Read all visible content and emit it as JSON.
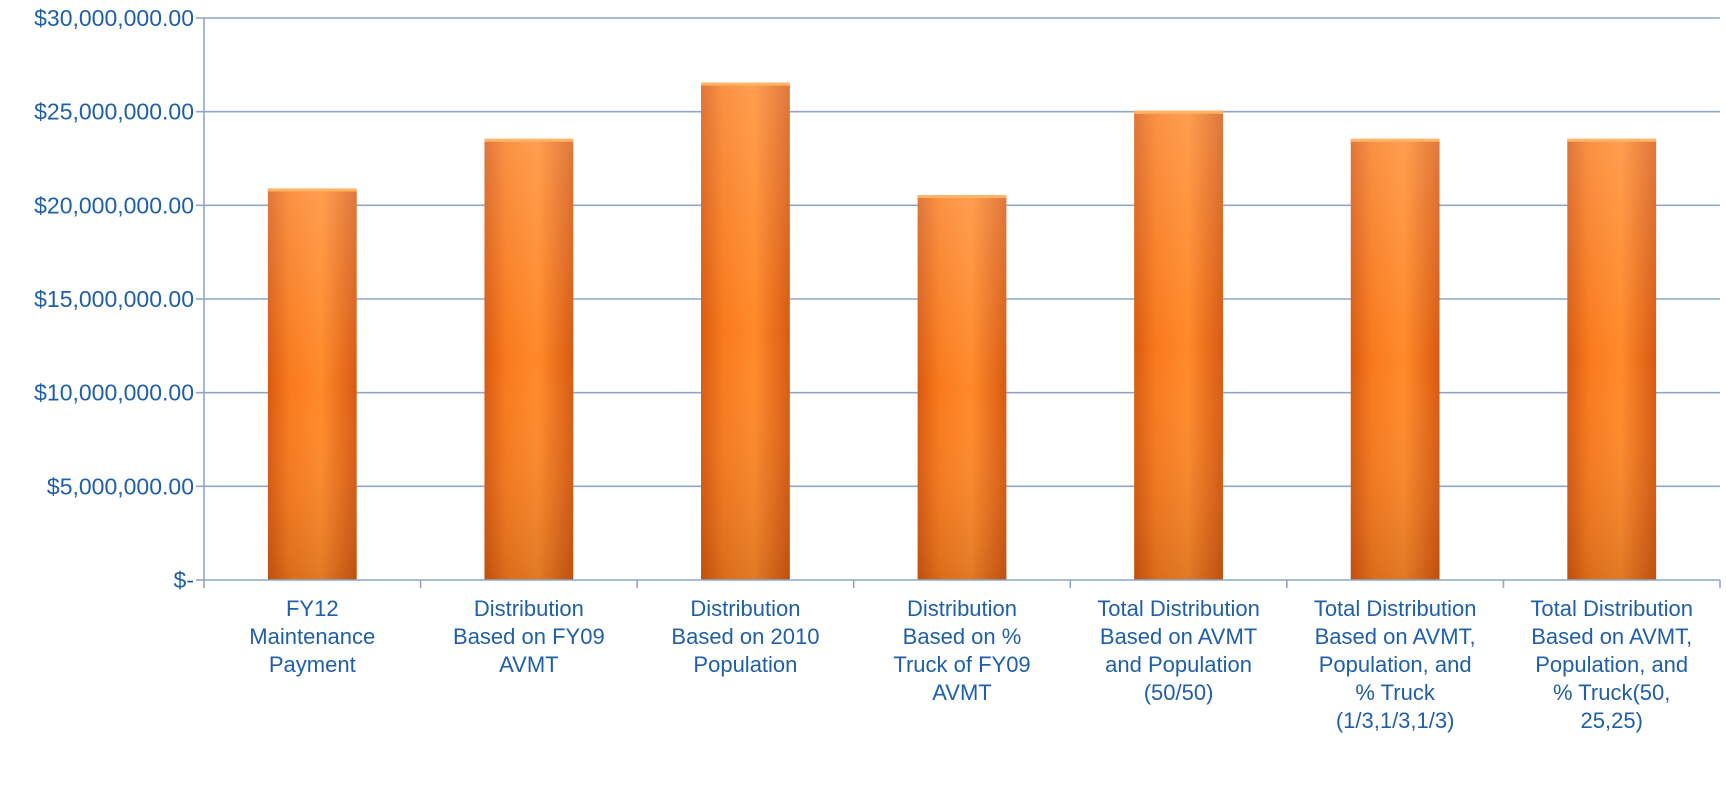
{
  "chart_data": {
    "type": "bar",
    "title": "",
    "xlabel": "",
    "ylabel": "",
    "ylim": [
      0,
      30000000
    ],
    "yticks": [
      0,
      5000000,
      10000000,
      15000000,
      20000000,
      25000000,
      30000000
    ],
    "ytick_labels": [
      "$-",
      "$5,000,000.00",
      "$10,000,000.00",
      "$15,000,000.00",
      "$20,000,000.00",
      "$25,000,000.00",
      "$30,000,000.00"
    ],
    "grid": true,
    "legend": "none",
    "colors": {
      "bar": "#f97a1c",
      "bar_light": "#ff9a3c",
      "bar_dark": "#d85a10",
      "grid": "#8fa6c8",
      "axis": "#8fa6c8",
      "text": "#1f5fa8"
    },
    "categories": [
      [
        "FY12",
        "Maintenance",
        "Payment"
      ],
      [
        "Distribution",
        "Based on FY09",
        "AVMT"
      ],
      [
        "Distribution",
        "Based on 2010",
        "Population"
      ],
      [
        "Distribution",
        "Based on %",
        "Truck of FY09",
        "AVMT"
      ],
      [
        "Total Distribution",
        "Based on AVMT",
        "and Population",
        "(50/50)"
      ],
      [
        "Total Distribution",
        "Based on AVMT,",
        "Population, and",
        "% Truck",
        "(1/3,1/3,1/3)"
      ],
      [
        "Total Distribution",
        "Based on AVMT,",
        "Population, and",
        "% Truck(50,",
        "25,25)"
      ]
    ],
    "values": [
      20900000,
      23550000,
      26550000,
      20550000,
      25050000,
      23550000,
      23550000
    ]
  }
}
